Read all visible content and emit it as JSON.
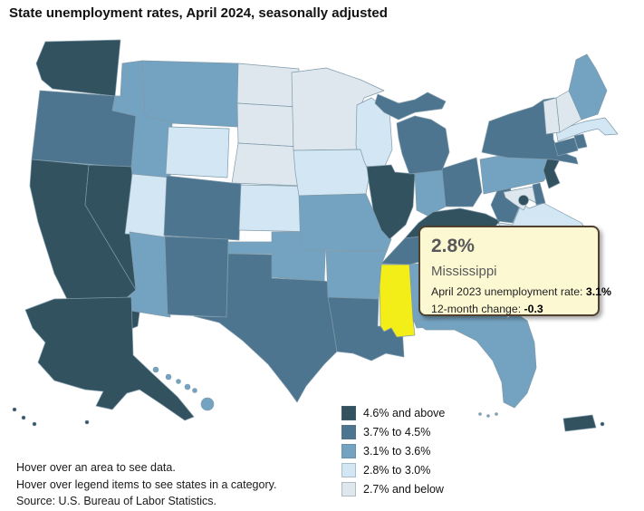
{
  "title": "State unemployment rates, April 2024, seasonally adjusted",
  "tooltip": {
    "value": "2.8%",
    "state": "Mississippi",
    "detail1": {
      "label": "April 2023 unemployment rate: ",
      "value": "3.1%"
    },
    "detail2": {
      "label": "12-month change: ",
      "value": "-0.3"
    }
  },
  "legend": {
    "items": [
      {
        "label": "4.6% and above",
        "color": "#33525f"
      },
      {
        "label": "3.7% to 4.5%",
        "color": "#4e7590"
      },
      {
        "label": "3.1% to 3.6%",
        "color": "#74a3c2"
      },
      {
        "label": "2.8% to 3.0%",
        "color": "#d3e6f3"
      },
      {
        "label": "2.7% and below",
        "color": "#dde7ed"
      }
    ]
  },
  "footer": {
    "line1": "Hover over an area to see data.",
    "line2": "Hover over legend items to see states in a category.",
    "line3": "Source: U.S. Bureau of Labor Statistics."
  },
  "map": {
    "border_color": "#7f9aab",
    "highlight": {
      "state_id": "MS",
      "color": "#f3ee17"
    },
    "states": [
      {
        "id": "WA",
        "name": "Washington",
        "category": 0
      },
      {
        "id": "OR",
        "name": "Oregon",
        "category": 1
      },
      {
        "id": "CA",
        "name": "California",
        "category": 0
      },
      {
        "id": "NV",
        "name": "Nevada",
        "category": 0
      },
      {
        "id": "ID",
        "name": "Idaho",
        "category": 2
      },
      {
        "id": "MT",
        "name": "Montana",
        "category": 2
      },
      {
        "id": "WY",
        "name": "Wyoming",
        "category": 3
      },
      {
        "id": "UT",
        "name": "Utah",
        "category": 3
      },
      {
        "id": "CO",
        "name": "Colorado",
        "category": 1
      },
      {
        "id": "AZ",
        "name": "Arizona",
        "category": 2
      },
      {
        "id": "NM",
        "name": "New Mexico",
        "category": 1
      },
      {
        "id": "ND",
        "name": "North Dakota",
        "category": 4
      },
      {
        "id": "SD",
        "name": "South Dakota",
        "category": 4
      },
      {
        "id": "NE",
        "name": "Nebraska",
        "category": 4
      },
      {
        "id": "KS",
        "name": "Kansas",
        "category": 3
      },
      {
        "id": "OK",
        "name": "Oklahoma",
        "category": 2
      },
      {
        "id": "TX",
        "name": "Texas",
        "category": 1
      },
      {
        "id": "MN",
        "name": "Minnesota",
        "category": 4
      },
      {
        "id": "WI",
        "name": "Wisconsin",
        "category": 3
      },
      {
        "id": "IA",
        "name": "Iowa",
        "category": 3
      },
      {
        "id": "MO",
        "name": "Missouri",
        "category": 2
      },
      {
        "id": "IL",
        "name": "Illinois",
        "category": 0
      },
      {
        "id": "IN",
        "name": "Indiana",
        "category": 2
      },
      {
        "id": "OH",
        "name": "Ohio",
        "category": 1
      },
      {
        "id": "MI",
        "name": "Michigan",
        "category": 1
      },
      {
        "id": "KY",
        "name": "Kentucky",
        "category": 0
      },
      {
        "id": "TN",
        "name": "Tennessee",
        "category": 1
      },
      {
        "id": "WV",
        "name": "West Virginia",
        "category": 1
      },
      {
        "id": "VA",
        "name": "Virginia",
        "category": 3
      },
      {
        "id": "NC",
        "name": "North Carolina",
        "category": 2
      },
      {
        "id": "SC",
        "name": "South Carolina",
        "category": 2
      },
      {
        "id": "GA",
        "name": "Georgia",
        "category": 2
      },
      {
        "id": "AL",
        "name": "Alabama",
        "category": 2
      },
      {
        "id": "AR",
        "name": "Arkansas",
        "category": 2
      },
      {
        "id": "LA",
        "name": "Louisiana",
        "category": 1
      },
      {
        "id": "MS",
        "name": "Mississippi",
        "category": 3
      },
      {
        "id": "FL",
        "name": "Florida",
        "category": 2
      },
      {
        "id": "PA",
        "name": "Pennsylvania",
        "category": 2
      },
      {
        "id": "MD",
        "name": "Maryland",
        "category": 4
      },
      {
        "id": "DE",
        "name": "Delaware",
        "category": 1
      },
      {
        "id": "NJ",
        "name": "New Jersey",
        "category": 0
      },
      {
        "id": "NY",
        "name": "New York",
        "category": 1
      },
      {
        "id": "CT",
        "name": "Connecticut",
        "category": 1
      },
      {
        "id": "RI",
        "name": "Rhode Island",
        "category": 1
      },
      {
        "id": "MA",
        "name": "Massachusetts",
        "category": 3
      },
      {
        "id": "VT",
        "name": "Vermont",
        "category": 4
      },
      {
        "id": "NH",
        "name": "New Hampshire",
        "category": 4
      },
      {
        "id": "ME",
        "name": "Maine",
        "category": 2
      },
      {
        "id": "AK",
        "name": "Alaska",
        "category": 0
      },
      {
        "id": "HI",
        "name": "Hawaii",
        "category": 2
      },
      {
        "id": "PR",
        "name": "Puerto Rico",
        "category": 0
      },
      {
        "id": "DC",
        "name": "District of Columbia",
        "category": 0
      }
    ]
  }
}
